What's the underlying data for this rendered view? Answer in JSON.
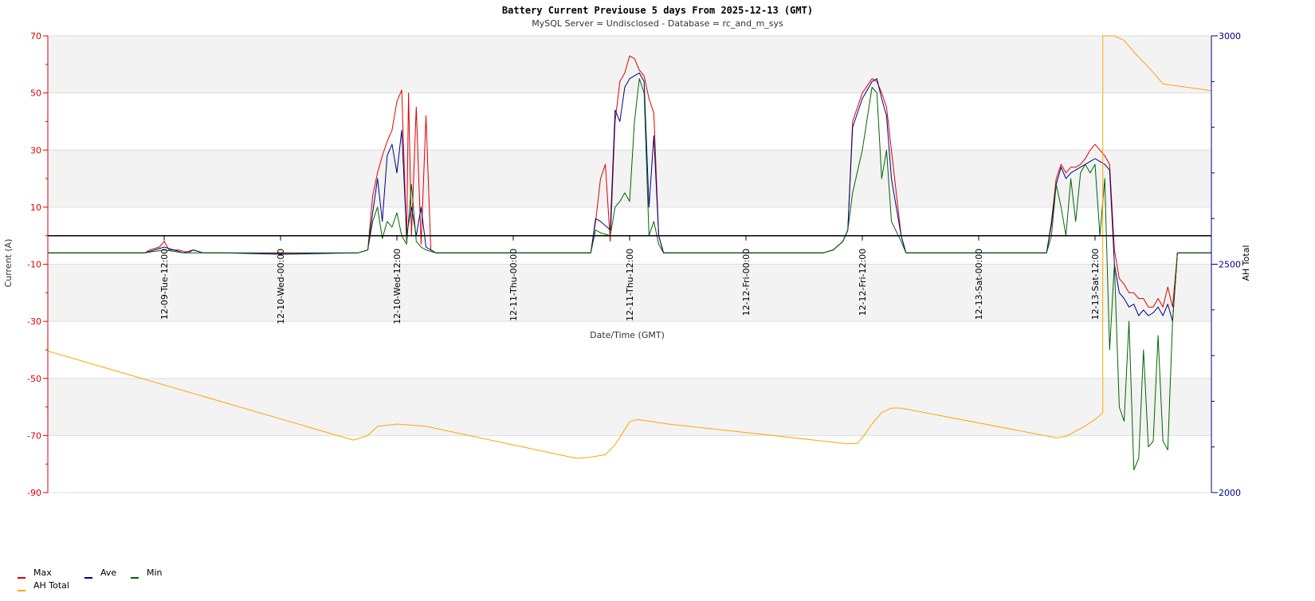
{
  "chart_data": {
    "type": "line",
    "title": "Battery Current Previouse 5 days From 2025-12-13 (GMT)",
    "subtitle": "MySQL Server = Undisclosed - Database = rc_and_m_sys",
    "xlabel": "Date/Time (GMT)",
    "ylabel": "Current (A)",
    "y2label": "AH Total",
    "ylim": [
      -90,
      70
    ],
    "y2lim": [
      2000,
      3000
    ],
    "xlim_hours": [
      -12,
      108
    ],
    "left_tick_labels": [
      "70",
      "50",
      "30",
      "10",
      "-10",
      "-30",
      "-50",
      "-70",
      "-90"
    ],
    "left_tick_values": [
      70,
      50,
      30,
      10,
      -10,
      -30,
      -50,
      -70,
      -90
    ],
    "right_tick_labels": [
      "3000",
      "2500",
      "2000"
    ],
    "right_tick_values": [
      3000,
      2500,
      2000
    ],
    "x_tick_labels": [
      "12-09-Tue-12:00",
      "12-10-Wed-00:00",
      "12-10-Wed-12:00",
      "12-11-Thu-00:00",
      "12-11-Thu-12:00",
      "12-12-Fri-00:00",
      "12-12-Fri-12:00",
      "12-13-Sat-00:00",
      "12-13-Sat-12:00"
    ],
    "x_tick_hours": [
      0,
      12,
      24,
      36,
      48,
      60,
      72,
      84,
      96
    ],
    "zero_line": 0,
    "grid": true,
    "legend_position": "bottom-left",
    "colors": {
      "max": "#e00000",
      "ave": "#000080",
      "min": "#006400",
      "ah": "#ffa500",
      "band": "#f3f3f3",
      "left_axis": "#e00000",
      "right_axis": "#000080"
    },
    "series": [
      {
        "name": "Max",
        "axis": "left",
        "color": "#e00000",
        "points": [
          [
            -12,
            -6
          ],
          [
            -2,
            -6
          ],
          [
            -1.5,
            -5
          ],
          [
            -0.5,
            -4
          ],
          [
            0,
            -2
          ],
          [
            0.5,
            -5
          ],
          [
            1.5,
            -5
          ],
          [
            2.5,
            -6
          ],
          [
            3,
            -5
          ],
          [
            4,
            -6
          ],
          [
            6,
            -6
          ],
          [
            12,
            -6.2
          ],
          [
            20,
            -6
          ],
          [
            21,
            -5
          ],
          [
            21.5,
            14
          ],
          [
            22,
            22
          ],
          [
            22.5,
            28
          ],
          [
            23,
            33
          ],
          [
            23.5,
            37
          ],
          [
            24,
            47
          ],
          [
            24.5,
            51
          ],
          [
            25,
            -2
          ],
          [
            25.2,
            50
          ],
          [
            25.5,
            0
          ],
          [
            26,
            45
          ],
          [
            26.5,
            -3
          ],
          [
            27,
            42
          ],
          [
            27.5,
            -5
          ],
          [
            28,
            -6
          ],
          [
            40,
            -6
          ],
          [
            44,
            -6
          ],
          [
            44.5,
            5
          ],
          [
            45,
            20
          ],
          [
            45.5,
            25
          ],
          [
            46,
            -2
          ],
          [
            46.5,
            40
          ],
          [
            47,
            54
          ],
          [
            47.5,
            57
          ],
          [
            48,
            63
          ],
          [
            48.5,
            62
          ],
          [
            49,
            58
          ],
          [
            49.5,
            56
          ],
          [
            50,
            48
          ],
          [
            50.5,
            43
          ],
          [
            51,
            0
          ],
          [
            51.5,
            -6
          ],
          [
            60,
            -6
          ],
          [
            68,
            -6
          ],
          [
            69,
            -5
          ],
          [
            70,
            -2
          ],
          [
            70.5,
            2
          ],
          [
            71,
            40
          ],
          [
            72,
            50
          ],
          [
            73,
            55
          ],
          [
            73.5,
            54
          ],
          [
            74,
            50
          ],
          [
            74.5,
            45
          ],
          [
            75,
            30
          ],
          [
            76,
            0
          ],
          [
            76.5,
            -6
          ],
          [
            84,
            -6
          ],
          [
            91,
            -6
          ],
          [
            91.5,
            5
          ],
          [
            92,
            20
          ],
          [
            92.5,
            25
          ],
          [
            93,
            22
          ],
          [
            93.5,
            24
          ],
          [
            94,
            24
          ],
          [
            94.5,
            25
          ],
          [
            95,
            27
          ],
          [
            95.5,
            30
          ],
          [
            96,
            32
          ],
          [
            96.5,
            30
          ],
          [
            97,
            28
          ],
          [
            97.5,
            25
          ],
          [
            98,
            -5
          ],
          [
            98.5,
            -15
          ],
          [
            99,
            -17
          ],
          [
            99.5,
            -20
          ],
          [
            100,
            -20
          ],
          [
            100.5,
            -22
          ],
          [
            101,
            -22
          ],
          [
            101.5,
            -25
          ],
          [
            102,
            -25
          ],
          [
            102.5,
            -22
          ],
          [
            103,
            -25
          ],
          [
            103.5,
            -18
          ],
          [
            104,
            -25
          ],
          [
            104.5,
            -6
          ],
          [
            108,
            -6
          ]
        ]
      },
      {
        "name": "Ave",
        "axis": "left",
        "color": "#000080",
        "points": [
          [
            -12,
            -6
          ],
          [
            -2,
            -6
          ],
          [
            -1,
            -5
          ],
          [
            0,
            -4
          ],
          [
            1,
            -5
          ],
          [
            2,
            -6
          ],
          [
            3,
            -5
          ],
          [
            4,
            -6
          ],
          [
            6,
            -6
          ],
          [
            12,
            -6.5
          ],
          [
            20,
            -6
          ],
          [
            21,
            -5
          ],
          [
            21.5,
            8
          ],
          [
            22,
            20
          ],
          [
            22.5,
            5
          ],
          [
            23,
            28
          ],
          [
            23.5,
            32
          ],
          [
            24,
            22
          ],
          [
            24.5,
            37
          ],
          [
            25,
            0
          ],
          [
            25.5,
            10
          ],
          [
            26,
            0
          ],
          [
            26.5,
            10
          ],
          [
            27,
            -4
          ],
          [
            27.5,
            -5
          ],
          [
            28,
            -6
          ],
          [
            40,
            -6
          ],
          [
            44,
            -6
          ],
          [
            44.5,
            6
          ],
          [
            45,
            5
          ],
          [
            46,
            2
          ],
          [
            46.5,
            44
          ],
          [
            47,
            40
          ],
          [
            47.5,
            52
          ],
          [
            48,
            55
          ],
          [
            48.5,
            56
          ],
          [
            49,
            57
          ],
          [
            49.5,
            54
          ],
          [
            50,
            10
          ],
          [
            50.5,
            35
          ],
          [
            51,
            0
          ],
          [
            51.5,
            -6
          ],
          [
            60,
            -6
          ],
          [
            68,
            -6
          ],
          [
            69,
            -5
          ],
          [
            70,
            -2
          ],
          [
            70.5,
            2
          ],
          [
            71,
            38
          ],
          [
            72,
            48
          ],
          [
            73,
            54
          ],
          [
            73.5,
            55
          ],
          [
            74,
            48
          ],
          [
            74.5,
            42
          ],
          [
            75,
            20
          ],
          [
            76,
            0
          ],
          [
            76.5,
            -6
          ],
          [
            84,
            -6
          ],
          [
            91,
            -6
          ],
          [
            91.5,
            4
          ],
          [
            92,
            18
          ],
          [
            92.5,
            24
          ],
          [
            93,
            20
          ],
          [
            93.5,
            22
          ],
          [
            94,
            23
          ],
          [
            94.5,
            24
          ],
          [
            95,
            25
          ],
          [
            95.5,
            26
          ],
          [
            96,
            27
          ],
          [
            96.5,
            26
          ],
          [
            97,
            25
          ],
          [
            97.5,
            23
          ],
          [
            98,
            -10
          ],
          [
            98.5,
            -20
          ],
          [
            99,
            -22
          ],
          [
            99.5,
            -25
          ],
          [
            100,
            -24
          ],
          [
            100.5,
            -28
          ],
          [
            101,
            -26
          ],
          [
            101.5,
            -28
          ],
          [
            102,
            -27
          ],
          [
            102.5,
            -25
          ],
          [
            103,
            -28
          ],
          [
            103.5,
            -24
          ],
          [
            104,
            -30
          ],
          [
            104.5,
            -6
          ],
          [
            108,
            -6
          ]
        ]
      },
      {
        "name": "Min",
        "axis": "left",
        "color": "#006400",
        "points": [
          [
            -12,
            -6
          ],
          [
            -2,
            -6
          ],
          [
            -1,
            -5.5
          ],
          [
            0,
            -5
          ],
          [
            1,
            -5.5
          ],
          [
            2,
            -6
          ],
          [
            6,
            -6
          ],
          [
            20,
            -6
          ],
          [
            21,
            -5
          ],
          [
            21.5,
            5
          ],
          [
            22,
            10
          ],
          [
            22.5,
            -1
          ],
          [
            23,
            5
          ],
          [
            23.5,
            3
          ],
          [
            24,
            8
          ],
          [
            24.5,
            0
          ],
          [
            25,
            -3
          ],
          [
            25.5,
            18
          ],
          [
            26,
            -2
          ],
          [
            26.5,
            -4
          ],
          [
            27,
            -5
          ],
          [
            28,
            -6
          ],
          [
            40,
            -6
          ],
          [
            44,
            -6
          ],
          [
            44.5,
            2
          ],
          [
            45,
            1
          ],
          [
            46,
            0
          ],
          [
            46.5,
            10
          ],
          [
            47,
            12
          ],
          [
            47.5,
            15
          ],
          [
            48,
            12
          ],
          [
            48.5,
            40
          ],
          [
            49,
            55
          ],
          [
            49.5,
            50
          ],
          [
            50,
            0
          ],
          [
            50.5,
            5
          ],
          [
            51,
            -3
          ],
          [
            51.5,
            -6
          ],
          [
            60,
            -6
          ],
          [
            68,
            -6
          ],
          [
            69,
            -5
          ],
          [
            70,
            -2
          ],
          [
            70.5,
            2
          ],
          [
            71,
            15
          ],
          [
            72,
            30
          ],
          [
            73,
            52
          ],
          [
            73.5,
            50
          ],
          [
            74,
            20
          ],
          [
            74.5,
            30
          ],
          [
            75,
            5
          ],
          [
            76,
            -2
          ],
          [
            76.5,
            -6
          ],
          [
            84,
            -6
          ],
          [
            91,
            -6
          ],
          [
            91.5,
            0
          ],
          [
            92,
            18
          ],
          [
            92.5,
            10
          ],
          [
            93,
            0
          ],
          [
            93.5,
            20
          ],
          [
            94,
            5
          ],
          [
            94.5,
            22
          ],
          [
            95,
            25
          ],
          [
            95.5,
            22
          ],
          [
            96,
            25
          ],
          [
            96.5,
            0
          ],
          [
            97,
            20
          ],
          [
            97.5,
            -40
          ],
          [
            98,
            -10
          ],
          [
            98.5,
            -60
          ],
          [
            99,
            -65
          ],
          [
            99.5,
            -30
          ],
          [
            100,
            -82
          ],
          [
            100.5,
            -78
          ],
          [
            101,
            -40
          ],
          [
            101.5,
            -74
          ],
          [
            102,
            -72
          ],
          [
            102.5,
            -35
          ],
          [
            103,
            -72
          ],
          [
            103.5,
            -75
          ],
          [
            104,
            -30
          ],
          [
            104.5,
            -6
          ],
          [
            108,
            -6
          ]
        ]
      },
      {
        "name": "AH Total",
        "axis": "right",
        "color": "#ffa500",
        "points": [
          [
            -12,
            2310
          ],
          [
            19.5,
            2115
          ],
          [
            21,
            2125
          ],
          [
            22,
            2145
          ],
          [
            24,
            2150
          ],
          [
            27,
            2145
          ],
          [
            42.5,
            2075
          ],
          [
            43.8,
            2077
          ],
          [
            45.5,
            2083
          ],
          [
            46.5,
            2105
          ],
          [
            48,
            2155
          ],
          [
            48.8,
            2160
          ],
          [
            52,
            2150
          ],
          [
            70.5,
            2107
          ],
          [
            71.5,
            2108
          ],
          [
            72,
            2120
          ],
          [
            73,
            2150
          ],
          [
            74,
            2175
          ],
          [
            75,
            2185
          ],
          [
            76,
            2185
          ],
          [
            92,
            2120
          ],
          [
            93,
            2123
          ],
          [
            95,
            2146
          ],
          [
            96,
            2160
          ],
          [
            96.8,
            2175
          ],
          [
            96.8,
            3000
          ],
          [
            98,
            3000
          ],
          [
            99,
            2990
          ],
          [
            100,
            2965
          ],
          [
            102,
            2920
          ],
          [
            103,
            2895
          ],
          [
            108,
            2880
          ]
        ]
      }
    ]
  }
}
